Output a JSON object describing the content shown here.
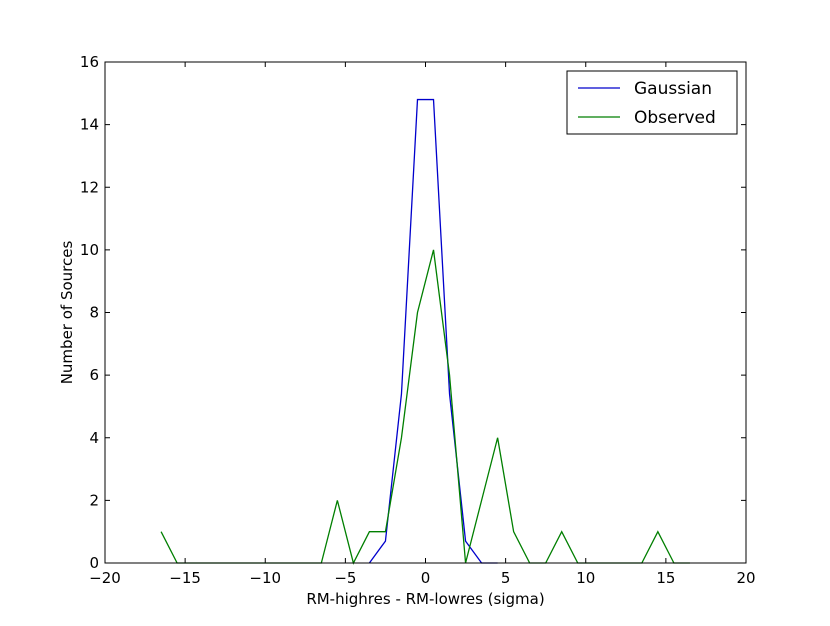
{
  "chart_data": {
    "type": "line",
    "xlabel": "RM-highres - RM-lowres (sigma)",
    "ylabel": "Number of Sources",
    "xlim": [
      -20,
      20
    ],
    "ylim": [
      0,
      16
    ],
    "xticks": [
      -20,
      -15,
      -10,
      -5,
      0,
      5,
      10,
      15,
      20
    ],
    "xtick_labels": [
      "−20",
      "−15",
      "−10",
      "−5",
      "0",
      "5",
      "10",
      "15",
      "20"
    ],
    "yticks": [
      0,
      2,
      4,
      6,
      8,
      10,
      12,
      14,
      16
    ],
    "ytick_labels": [
      "0",
      "2",
      "4",
      "6",
      "8",
      "10",
      "12",
      "14",
      "16"
    ],
    "grid": false,
    "legend_position": "top-right",
    "series": [
      {
        "name": "Gaussian",
        "color": "#0000cc",
        "x": [
          -3.5,
          -2.5,
          -1.5,
          -0.5,
          0.5,
          1.5,
          2.5,
          3.5,
          4.5
        ],
        "y": [
          0,
          0.7,
          5.4,
          14.8,
          14.8,
          5.4,
          0.7,
          0,
          0
        ]
      },
      {
        "name": "Observed",
        "color": "#007f00",
        "x": [
          -16.5,
          -15.5,
          -14.5,
          -13.5,
          -12.5,
          -11.5,
          -10.5,
          -9.5,
          -8.5,
          -7.5,
          -6.5,
          -5.5,
          -4.5,
          -3.5,
          -2.5,
          -1.5,
          -0.5,
          0.5,
          1.5,
          2.5,
          3.5,
          4.5,
          5.5,
          6.5,
          7.5,
          8.5,
          9.5,
          10.5,
          11.5,
          12.5,
          13.5,
          14.5,
          15.5,
          16.5
        ],
        "y": [
          1,
          0,
          0,
          0,
          0,
          0,
          0,
          0,
          0,
          0,
          0,
          2,
          0,
          1,
          1,
          4,
          8,
          10,
          6,
          0,
          2,
          4,
          1,
          0,
          0,
          1,
          0,
          0,
          0,
          0,
          0,
          1,
          0,
          0
        ]
      }
    ]
  }
}
